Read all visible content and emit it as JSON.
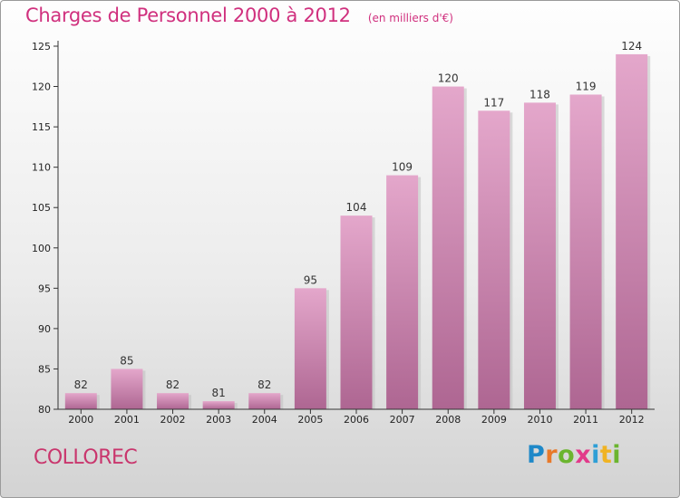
{
  "header": {
    "title": "Charges de Personnel 2000 à 2012",
    "subtitle": "(en milliers d'€)"
  },
  "footer": {
    "commune": "COLLOREC",
    "brand": {
      "letters": [
        "P",
        "r",
        "o",
        "x",
        "i",
        "t",
        "i"
      ],
      "colors": [
        "#1e88c8",
        "#e8792a",
        "#6bb52f",
        "#e23a8a",
        "#2e9fd6",
        "#f0b323",
        "#6bb52f"
      ]
    }
  },
  "colors": {
    "bar_top": "#e4a7cb",
    "bar_bottom": "#ae6692",
    "bar_shadow": "#bfbfbf",
    "axis": "#333333",
    "grid_tick": "#333333",
    "title": "#d0307e"
  },
  "chart_data": {
    "type": "bar",
    "title": "Charges de Personnel 2000 à 2012",
    "subtitle": "(en milliers d'€)",
    "xlabel": "",
    "ylabel": "",
    "categories": [
      "2000",
      "2001",
      "2002",
      "2003",
      "2004",
      "2005",
      "2006",
      "2007",
      "2008",
      "2009",
      "2010",
      "2011",
      "2012"
    ],
    "values": [
      82,
      85,
      82,
      81,
      82,
      95,
      104,
      109,
      120,
      117,
      118,
      119,
      124
    ],
    "ylim": [
      80,
      125
    ],
    "yticks": [
      80,
      85,
      90,
      95,
      100,
      105,
      110,
      115,
      120,
      125
    ],
    "grid": false,
    "data_labels": true
  }
}
